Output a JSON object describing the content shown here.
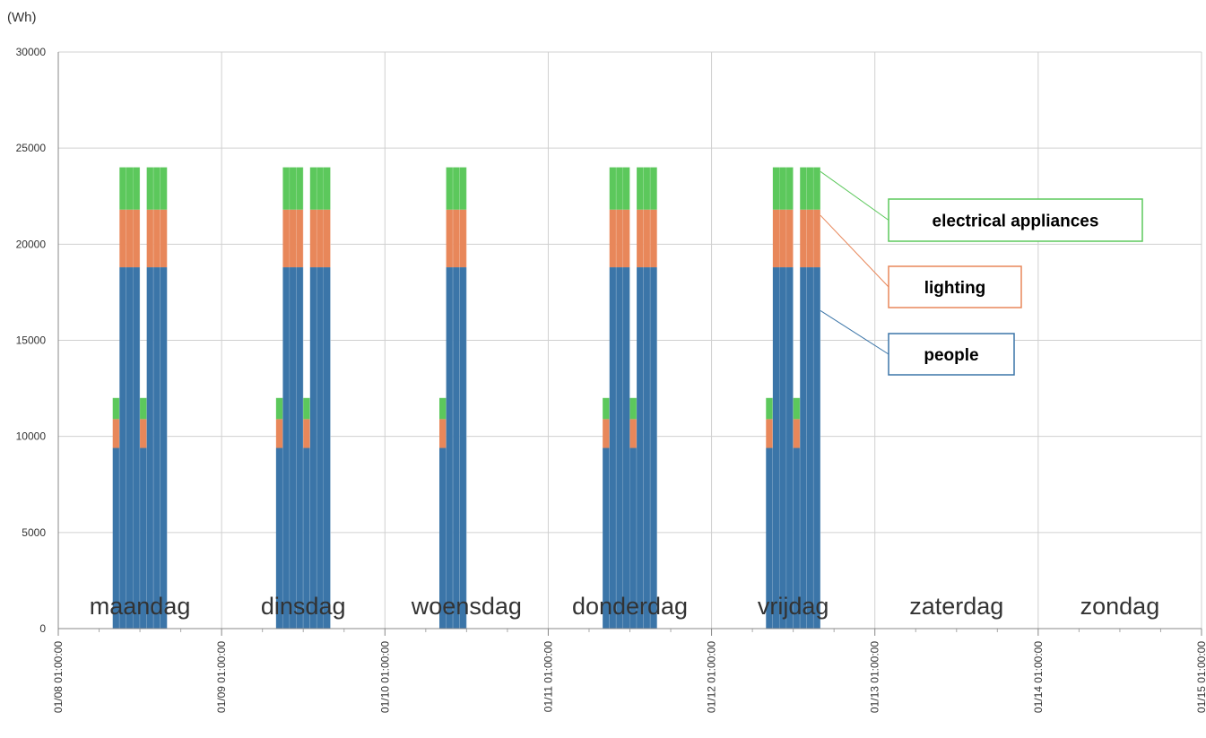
{
  "chart_data": {
    "type": "bar",
    "stacked": true,
    "y_unit_label": "(Wh)",
    "title": "",
    "xlabel": "",
    "ylabel": "",
    "ylim": [
      0,
      30000
    ],
    "yticks": [
      0,
      5000,
      10000,
      15000,
      20000,
      25000,
      30000
    ],
    "grid": true,
    "x_range_days": [
      "01/08 01:00:00",
      "01/15 01:00:00"
    ],
    "x_tick_labels": [
      "01/08 01:00:00",
      "01/09 01:00:00",
      "01/10 01:00:00",
      "01/11 01:00:00",
      "01/12 01:00:00",
      "01/13 01:00:00",
      "01/14 01:00:00",
      "01/15 01:00:00"
    ],
    "day_labels": [
      "maandag",
      "dinsdag",
      "woensdag",
      "donderdag",
      "vrijdag",
      "zaterdag",
      "zondag"
    ],
    "series": [
      {
        "name": "people",
        "color": "#3b75a8"
      },
      {
        "name": "lighting",
        "color": "#e8875a"
      },
      {
        "name": "electrical appliances",
        "color": "#5cc85c"
      }
    ],
    "hourly_profile": [
      {
        "hour": 8,
        "people": 9400,
        "lighting": 1500,
        "electrical appliances": 1100
      },
      {
        "hour": 9,
        "people": 18800,
        "lighting": 3000,
        "electrical appliances": 2200
      },
      {
        "hour": 10,
        "people": 18800,
        "lighting": 3000,
        "electrical appliances": 2200
      },
      {
        "hour": 11,
        "people": 18800,
        "lighting": 3000,
        "electrical appliances": 2200
      },
      {
        "hour": 12,
        "people": 9400,
        "lighting": 1500,
        "electrical appliances": 1100
      },
      {
        "hour": 13,
        "people": 18800,
        "lighting": 3000,
        "electrical appliances": 2200
      },
      {
        "hour": 14,
        "people": 18800,
        "lighting": 3000,
        "electrical appliances": 2200
      },
      {
        "hour": 15,
        "people": 18800,
        "lighting": 3000,
        "electrical appliances": 2200
      }
    ],
    "day_hours": [
      [
        8,
        9,
        10,
        11,
        12,
        13,
        14,
        15
      ],
      [
        8,
        9,
        10,
        11,
        12,
        13,
        14,
        15
      ],
      [
        8,
        9,
        10,
        11
      ],
      [
        8,
        9,
        10,
        11,
        12,
        13,
        14,
        15
      ],
      [
        8,
        9,
        10,
        11,
        12,
        13,
        14,
        15
      ],
      [],
      []
    ],
    "legend": [
      {
        "label": "electrical appliances",
        "color": "#5cc85c"
      },
      {
        "label": "lighting",
        "color": "#e8875a"
      },
      {
        "label": "people",
        "color": "#3b75a8"
      }
    ]
  }
}
